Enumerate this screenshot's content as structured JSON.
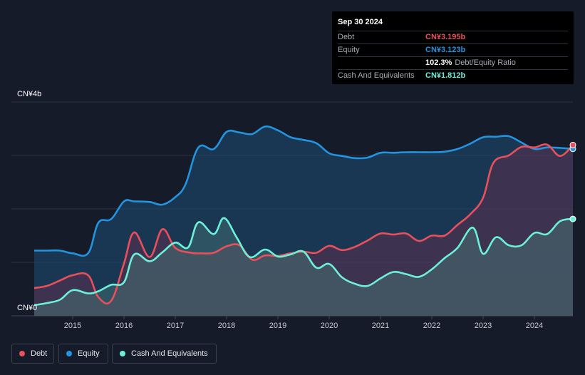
{
  "tooltip": {
    "date": "Sep 30 2024",
    "rows": [
      {
        "label": "Debt",
        "value": "CN¥3.195b",
        "color": "#e8505b"
      },
      {
        "label": "Equity",
        "value": "CN¥3.123b",
        "color": "#2394df"
      },
      {
        "label": "",
        "value": "102.3%",
        "suffix": "Debt/Equity Ratio",
        "color": "#ffffff"
      },
      {
        "label": "Cash And Equivalents",
        "value": "CN¥1.812b",
        "color": "#6cf0d9"
      }
    ]
  },
  "legend": [
    {
      "label": "Debt",
      "color": "#e8505b"
    },
    {
      "label": "Equity",
      "color": "#2394df"
    },
    {
      "label": "Cash And Equivalents",
      "color": "#6cf0d9"
    }
  ],
  "chart_data": {
    "type": "area",
    "y_top_label": "CN¥4b",
    "y_bottom_label": "CN¥0",
    "ylim": [
      0,
      4
    ],
    "xlim": [
      2014.25,
      2024.75
    ],
    "x_ticks": [
      "2015",
      "2016",
      "2017",
      "2018",
      "2019",
      "2020",
      "2021",
      "2022",
      "2023",
      "2024"
    ],
    "grid": true,
    "series": [
      {
        "name": "Debt",
        "color": "#e8505b",
        "x": [
          2014.25,
          2014.5,
          2014.75,
          2015.0,
          2015.3,
          2015.5,
          2015.75,
          2016.0,
          2016.2,
          2016.5,
          2016.75,
          2017.0,
          2017.3,
          2017.5,
          2017.75,
          2018.0,
          2018.25,
          2018.5,
          2018.75,
          2019.0,
          2019.25,
          2019.5,
          2019.75,
          2020.0,
          2020.25,
          2020.5,
          2020.75,
          2021.0,
          2021.25,
          2021.5,
          2021.75,
          2022.0,
          2022.25,
          2022.5,
          2022.75,
          2023.0,
          2023.2,
          2023.5,
          2023.75,
          2024.0,
          2024.25,
          2024.5,
          2024.75
        ],
        "y": [
          0.52,
          0.56,
          0.66,
          0.76,
          0.76,
          0.35,
          0.28,
          0.98,
          1.56,
          1.1,
          1.62,
          1.27,
          1.18,
          1.17,
          1.18,
          1.3,
          1.32,
          1.05,
          1.13,
          1.12,
          1.17,
          1.2,
          1.18,
          1.31,
          1.23,
          1.29,
          1.41,
          1.54,
          1.52,
          1.54,
          1.4,
          1.5,
          1.5,
          1.7,
          1.9,
          2.21,
          2.86,
          3.0,
          3.16,
          3.15,
          3.2,
          2.99,
          3.195
        ]
      },
      {
        "name": "Equity",
        "color": "#2394df",
        "x": [
          2014.25,
          2014.5,
          2014.75,
          2015.0,
          2015.3,
          2015.5,
          2015.75,
          2016.0,
          2016.2,
          2016.5,
          2016.75,
          2017.0,
          2017.2,
          2017.45,
          2017.75,
          2018.0,
          2018.25,
          2018.5,
          2018.75,
          2019.0,
          2019.25,
          2019.5,
          2019.75,
          2020.0,
          2020.25,
          2020.5,
          2020.75,
          2021.0,
          2021.25,
          2021.5,
          2021.75,
          2022.0,
          2022.25,
          2022.5,
          2022.75,
          2023.0,
          2023.25,
          2023.5,
          2023.75,
          2024.0,
          2024.25,
          2024.5,
          2024.75
        ],
        "y": [
          1.22,
          1.22,
          1.22,
          1.17,
          1.17,
          1.74,
          1.81,
          2.14,
          2.14,
          2.13,
          2.08,
          2.22,
          2.46,
          3.15,
          3.12,
          3.44,
          3.43,
          3.4,
          3.54,
          3.47,
          3.34,
          3.29,
          3.23,
          3.04,
          2.99,
          2.95,
          2.96,
          3.05,
          3.05,
          3.06,
          3.06,
          3.06,
          3.07,
          3.12,
          3.22,
          3.34,
          3.35,
          3.36,
          3.24,
          3.12,
          3.15,
          3.14,
          3.123
        ]
      },
      {
        "name": "Cash And Equivalents",
        "color": "#6cf0d9",
        "x": [
          2014.25,
          2014.5,
          2014.75,
          2015.0,
          2015.3,
          2015.5,
          2015.75,
          2016.0,
          2016.2,
          2016.5,
          2016.75,
          2017.0,
          2017.25,
          2017.45,
          2017.75,
          2017.95,
          2018.2,
          2018.45,
          2018.75,
          2019.0,
          2019.25,
          2019.5,
          2019.75,
          2020.0,
          2020.25,
          2020.5,
          2020.75,
          2021.0,
          2021.25,
          2021.5,
          2021.75,
          2022.0,
          2022.25,
          2022.5,
          2022.8,
          2023.0,
          2023.25,
          2023.5,
          2023.75,
          2024.0,
          2024.25,
          2024.5,
          2024.75
        ],
        "y": [
          0.2,
          0.24,
          0.3,
          0.48,
          0.42,
          0.46,
          0.58,
          0.63,
          1.15,
          1.02,
          1.19,
          1.37,
          1.28,
          1.75,
          1.53,
          1.83,
          1.46,
          1.1,
          1.24,
          1.11,
          1.15,
          1.2,
          0.9,
          0.97,
          0.72,
          0.6,
          0.56,
          0.7,
          0.82,
          0.78,
          0.73,
          0.87,
          1.08,
          1.27,
          1.65,
          1.16,
          1.47,
          1.32,
          1.32,
          1.55,
          1.53,
          1.77,
          1.812
        ]
      }
    ]
  }
}
